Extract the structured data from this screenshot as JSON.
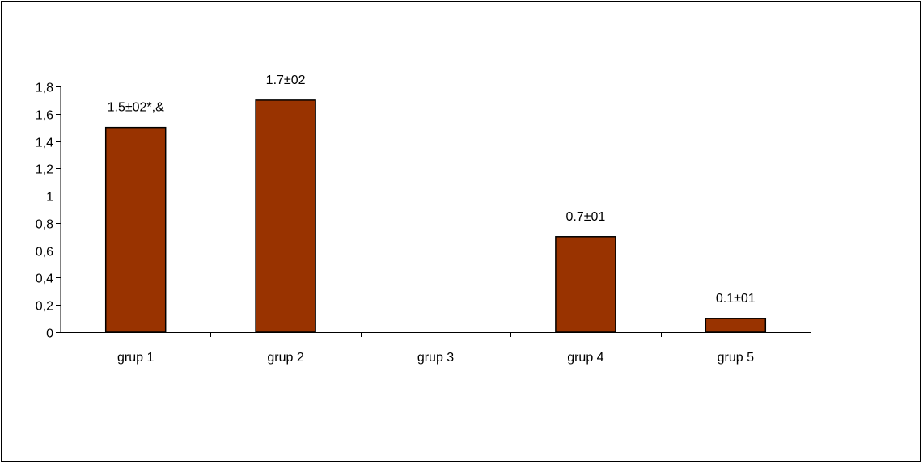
{
  "chart_data": {
    "type": "bar",
    "title": "",
    "xlabel": "",
    "ylabel": "",
    "categories": [
      "grup 1",
      "grup 2",
      "grup 3",
      "grup 4",
      "grup 5"
    ],
    "values": [
      1.5,
      1.7,
      0,
      0.7,
      0.1
    ],
    "data_labels": [
      "1.5±02*,&",
      "1.7±02",
      "",
      "0.7±01",
      "0.1±01"
    ],
    "ylim": [
      0,
      1.8
    ],
    "yticks": [
      0,
      0.2,
      0.4,
      0.6,
      0.8,
      1,
      1.2,
      1.4,
      1.6,
      1.8
    ],
    "ytick_labels": [
      "0",
      "0,2",
      "0,4",
      "0,6",
      "0,8",
      "1",
      "1,2",
      "1,4",
      "1,6",
      "1,8"
    ],
    "grid": false,
    "legend": "none",
    "bar_color": "#993300",
    "bar_edge_color": "#000000"
  }
}
